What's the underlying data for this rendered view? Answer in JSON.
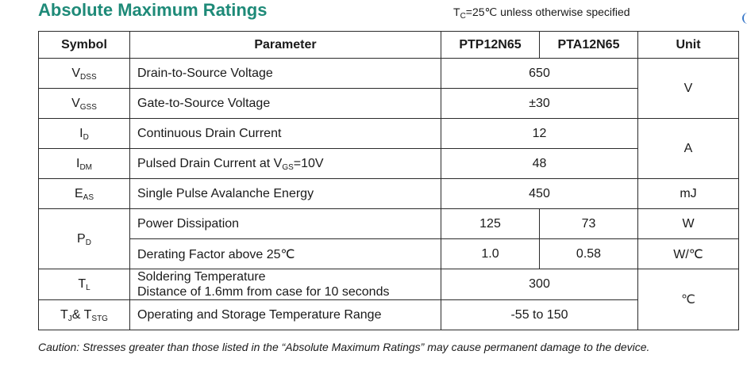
{
  "title": "Absolute Maximum Ratings",
  "conditions": {
    "prefix": "T",
    "sub": "C",
    "suffix": "=25℃  unless otherwise specified"
  },
  "headers": {
    "symbol": "Symbol",
    "parameter": "Parameter",
    "col_a": "PTP12N65",
    "col_b": "PTA12N65",
    "unit": "Unit"
  },
  "rows": {
    "vdss": {
      "sym": "V",
      "sub": "DSS",
      "param": "Drain-to-Source Voltage",
      "value": "650"
    },
    "vgss": {
      "sym": "V",
      "sub": "GSS",
      "param": "Gate-to-Source Voltage",
      "value": "±30"
    },
    "id": {
      "sym": "I",
      "sub": "D",
      "param": "Continuous Drain Current",
      "value": "12"
    },
    "idm": {
      "sym": "I",
      "sub": "DM",
      "param_pre": "Pulsed Drain Current at V",
      "param_sub": "GS",
      "param_post": "=10V",
      "value": "48"
    },
    "eas": {
      "sym": "E",
      "sub": "AS",
      "param": "Single Pulse Avalanche Energy",
      "value": "450",
      "unit": "mJ"
    },
    "pd": {
      "sym": "P",
      "sub": "D",
      "param1": "Power Dissipation",
      "a1": "125",
      "b1": "73",
      "unit1": "W",
      "param2": "Derating Factor above 25℃",
      "a2": "1.0",
      "b2": "0.58",
      "unit2": "W/℃"
    },
    "tl": {
      "sym": "T",
      "sub": "L",
      "param_line1": "Soldering Temperature",
      "param_line2": "Distance of 1.6mm from case for 10 seconds",
      "value": "300"
    },
    "tj": {
      "sym1": "T",
      "sub1": "J",
      "mid": "& T",
      "sub2": "STG",
      "param": "Operating and Storage Temperature Range",
      "value": "-55 to 150"
    }
  },
  "units": {
    "voltage": "V",
    "current": "A",
    "temperature": "℃"
  },
  "caution": "Caution: Stresses greater than those listed in the “Absolute Maximum Ratings” may cause permanent damage to the device.",
  "colors": {
    "title": "#1e8a78",
    "border": "#2a2a2a",
    "edge_mark": "#3a79c9"
  }
}
